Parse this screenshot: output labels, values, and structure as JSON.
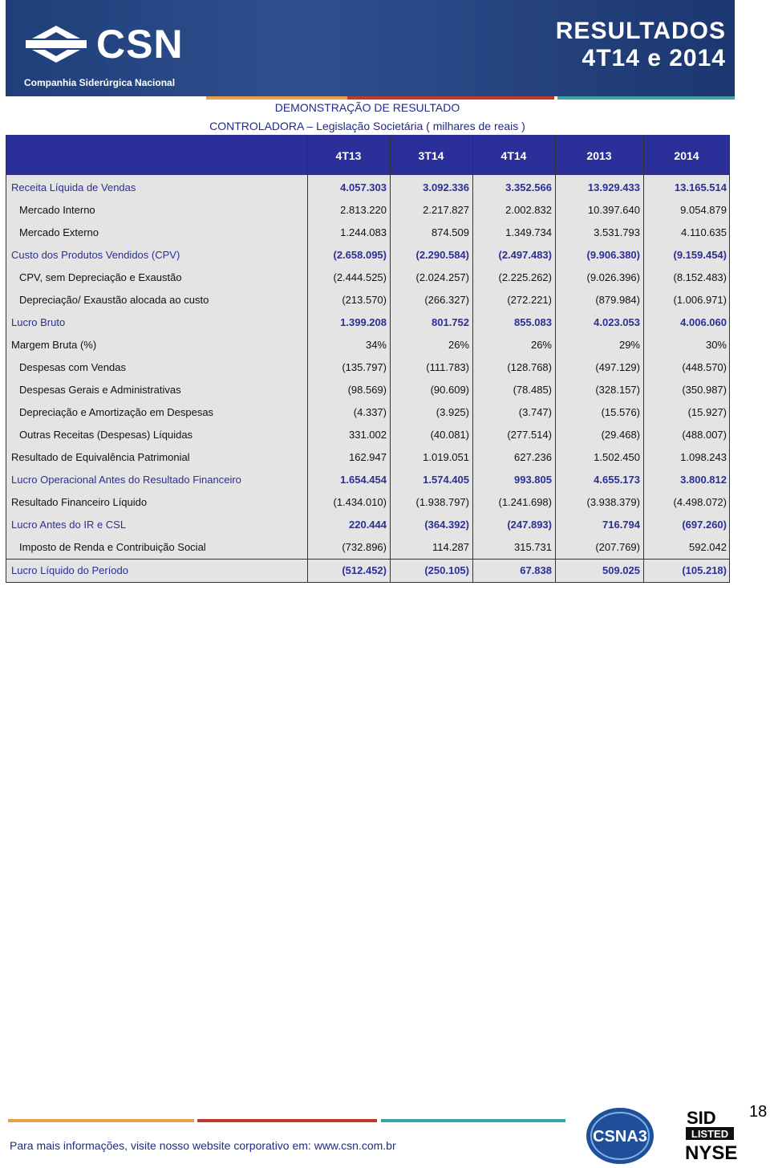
{
  "header": {
    "logo": "CSN",
    "company": "Companhia Siderúrgica Nacional",
    "title": [
      "RESULTADOS",
      "4T14 e 2014"
    ]
  },
  "table": {
    "title": [
      "DEMONSTRAÇÃO DE RESULTADO",
      "CONTROLADORA – Legislação Societária ( milhares de reais )"
    ],
    "columns": [
      "4T13",
      "3T14",
      "4T14",
      "2013",
      "2014"
    ],
    "rows": [
      [
        "Receita Líquida de Vendas",
        "4.057.303",
        "3.092.336",
        "3.352.566",
        "13.929.433",
        "13.165.514"
      ],
      [
        "Mercado Interno",
        "2.813.220",
        "2.217.827",
        "2.002.832",
        "10.397.640",
        "9.054.879"
      ],
      [
        "Mercado Externo",
        "1.244.083",
        "874.509",
        "1.349.734",
        "3.531.793",
        "4.110.635"
      ],
      [
        "Custo dos Produtos Vendidos (CPV)",
        "(2.658.095)",
        "(2.290.584)",
        "(2.497.483)",
        "(9.906.380)",
        "(9.159.454)"
      ],
      [
        "CPV, sem Depreciação e Exaustão",
        "(2.444.525)",
        "(2.024.257)",
        "(2.225.262)",
        "(9.026.396)",
        "(8.152.483)"
      ],
      [
        "Depreciação/ Exaustão alocada ao custo",
        "(213.570)",
        "(266.327)",
        "(272.221)",
        "(879.984)",
        "(1.006.971)"
      ],
      [
        "Lucro Bruto",
        "1.399.208",
        "801.752",
        "855.083",
        "4.023.053",
        "4.006.060"
      ],
      [
        "Margem Bruta (%)",
        "34%",
        "26%",
        "26%",
        "29%",
        "30%"
      ],
      [
        "Despesas com Vendas",
        "(135.797)",
        "(111.783)",
        "(128.768)",
        "(497.129)",
        "(448.570)"
      ],
      [
        "Despesas Gerais e Administrativas",
        "(98.569)",
        "(90.609)",
        "(78.485)",
        "(328.157)",
        "(350.987)"
      ],
      [
        "Depreciação e Amortização em Despesas",
        "(4.337)",
        "(3.925)",
        "(3.747)",
        "(15.576)",
        "(15.927)"
      ],
      [
        "Outras Receitas (Despesas) Líquidas",
        "331.002",
        "(40.081)",
        "(277.514)",
        "(29.468)",
        "(488.007)"
      ],
      [
        "Resultado de Equivalência Patrimonial",
        "162.947",
        "1.019.051",
        "627.236",
        "1.502.450",
        "1.098.243"
      ],
      [
        "Lucro Operacional Antes do Resultado Financeiro",
        "1.654.454",
        "1.574.405",
        "993.805",
        "4.655.173",
        "3.800.812"
      ],
      [
        "Resultado Financeiro Líquido",
        "(1.434.010)",
        "(1.938.797)",
        "(1.241.698)",
        "(3.938.379)",
        "(4.498.072)"
      ],
      [
        "Lucro Antes do IR e CSL",
        "220.444",
        "(364.392)",
        "(247.893)",
        "716.794",
        "(697.260)"
      ],
      [
        "Imposto de Renda e Contribuição Social",
        "(732.896)",
        "114.287",
        "315.731",
        "(207.769)",
        "592.042"
      ],
      [
        "Lucro Líquido do Período",
        "(512.452)",
        "(250.105)",
        "67.838",
        "509.025",
        "(105.218)"
      ]
    ]
  },
  "footer": {
    "text": "Para mais informações, visite nosso website corporativo em: www.csn.com.br",
    "page": "18",
    "badges": [
      "CSNA3",
      "SID",
      "LISTED",
      "NYSE"
    ]
  }
}
